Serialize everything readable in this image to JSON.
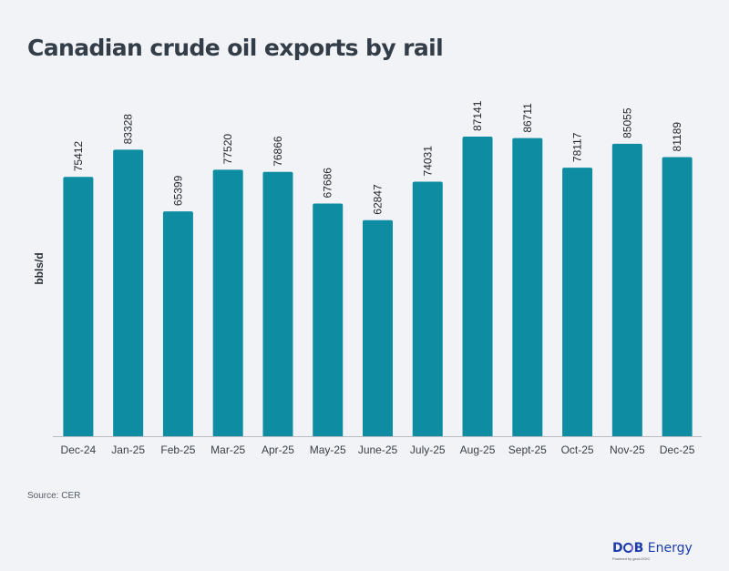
{
  "chart_data": {
    "type": "bar",
    "title": "Canadian crude oil exports by rail",
    "xlabel": "",
    "ylabel": "bbls/d",
    "categories": [
      "Dec-24",
      "Jan-25",
      "Feb-25",
      "Mar-25",
      "Apr-25",
      "May-25",
      "June-25",
      "July-25",
      "Aug-25",
      "Sept-25",
      "Oct-25",
      "Nov-25",
      "Dec-25"
    ],
    "values": [
      75412,
      83328,
      65399,
      77520,
      76866,
      67686,
      62847,
      74031,
      87141,
      86711,
      78117,
      85055,
      81189
    ],
    "data_labels": [
      "75412",
      "83328",
      "65399",
      "77520",
      "76866",
      "67686",
      "62847",
      "74031",
      "87141",
      "86711",
      "78117",
      "85055",
      "81189"
    ],
    "ylim": [
      0,
      95000
    ],
    "grid": false,
    "legend": "none",
    "bar_color": "#0e8ca2",
    "axis_color": "#b8bcc2"
  },
  "footer": {
    "source": "Source: CER",
    "logo_text_1": "D",
    "logo_text_2": "B",
    "logo_text_3": " Energy",
    "logo_tagline": "Powered by geoLOGIC"
  }
}
